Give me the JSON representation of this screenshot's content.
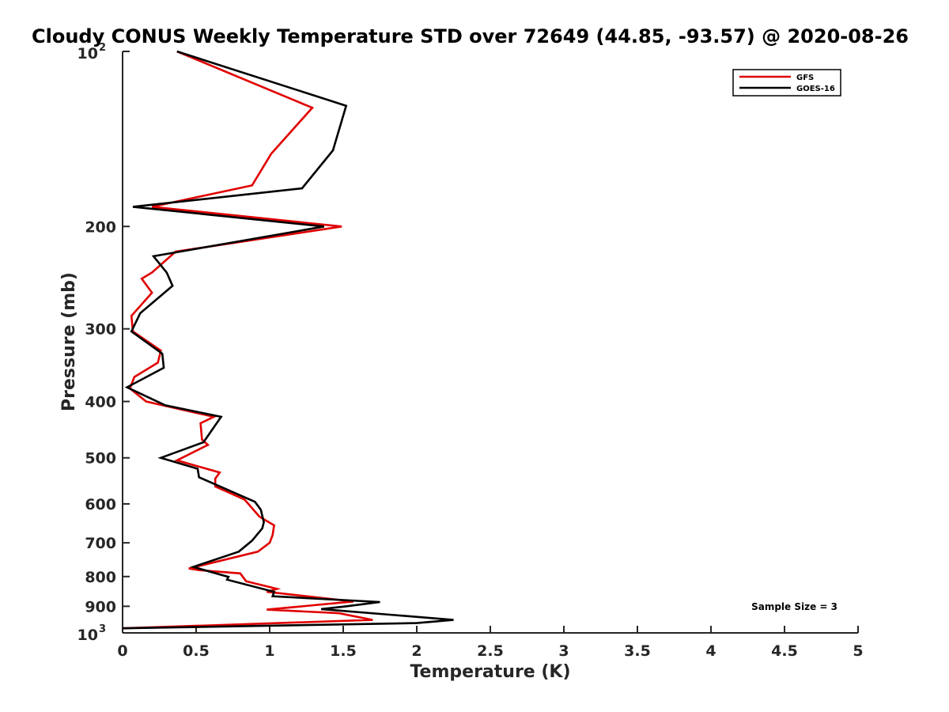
{
  "chart_data": {
    "type": "line",
    "title": "Cloudy CONUS Weekly Temperature STD over 72649 (44.85, -93.57) @ 2020-08-26",
    "xlabel": "Temperature (K)",
    "ylabel": "Pressure (mb)",
    "xlim": [
      0,
      5
    ],
    "ylim": [
      100,
      1000
    ],
    "y_scale": "log",
    "y_reversed": true,
    "x_ticks": [
      0,
      0.5,
      1,
      1.5,
      2,
      2.5,
      3,
      3.5,
      4,
      4.5,
      5
    ],
    "x_tick_labels": [
      "0",
      "0.5",
      "1",
      "1.5",
      "2",
      "2.5",
      "3",
      "3.5",
      "4",
      "4.5",
      "5"
    ],
    "y_ticks": [
      {
        "value": 100,
        "base": "10",
        "exp": "2"
      },
      {
        "value": 200,
        "label": "200"
      },
      {
        "value": 300,
        "label": "300"
      },
      {
        "value": 400,
        "label": "400"
      },
      {
        "value": 500,
        "label": "500"
      },
      {
        "value": 600,
        "label": "600"
      },
      {
        "value": 700,
        "label": "700"
      },
      {
        "value": 800,
        "label": "800"
      },
      {
        "value": 900,
        "label": "900"
      },
      {
        "value": 1000,
        "base": "10",
        "exp": "3"
      }
    ],
    "grid": false,
    "legend_position": "top-right",
    "annotation": "Sample Size = 3",
    "series": [
      {
        "name": "GFS",
        "color": "#e00000",
        "points": [
          [
            0.37,
            100
          ],
          [
            1.29,
            125
          ],
          [
            1.01,
            150
          ],
          [
            0.88,
            170
          ],
          [
            0.2,
            185
          ],
          [
            1.49,
            200
          ],
          [
            0.36,
            221
          ],
          [
            0.2,
            240
          ],
          [
            0.13,
            246
          ],
          [
            0.2,
            260
          ],
          [
            0.06,
            285
          ],
          [
            0.07,
            303
          ],
          [
            0.26,
            327
          ],
          [
            0.24,
            343
          ],
          [
            0.08,
            363
          ],
          [
            0.05,
            380
          ],
          [
            0.16,
            400
          ],
          [
            0.62,
            425
          ],
          [
            0.53,
            436
          ],
          [
            0.54,
            465
          ],
          [
            0.58,
            475
          ],
          [
            0.37,
            505
          ],
          [
            0.66,
            530
          ],
          [
            0.63,
            543
          ],
          [
            0.63,
            560
          ],
          [
            0.83,
            590
          ],
          [
            0.93,
            631
          ],
          [
            1.03,
            653
          ],
          [
            1.02,
            679
          ],
          [
            1.0,
            700
          ],
          [
            0.92,
            725
          ],
          [
            0.45,
            775
          ],
          [
            0.52,
            780
          ],
          [
            0.8,
            790
          ],
          [
            0.84,
            815
          ],
          [
            1.05,
            840
          ],
          [
            0.98,
            850
          ],
          [
            1.57,
            883
          ],
          [
            0.98,
            912
          ],
          [
            1.47,
            925
          ],
          [
            1.7,
            950
          ],
          [
            0.0,
            982
          ]
        ]
      },
      {
        "name": "GOES-16",
        "color": "#000000",
        "points": [
          [
            0.37,
            100
          ],
          [
            1.52,
            124
          ],
          [
            1.43,
            148
          ],
          [
            1.22,
            172
          ],
          [
            0.07,
            185
          ],
          [
            1.37,
            200
          ],
          [
            0.21,
            225
          ],
          [
            0.3,
            240
          ],
          [
            0.34,
            253
          ],
          [
            0.12,
            282
          ],
          [
            0.06,
            303
          ],
          [
            0.27,
            331
          ],
          [
            0.28,
            350
          ],
          [
            0.03,
            378
          ],
          [
            0.29,
            406
          ],
          [
            0.67,
            425
          ],
          [
            0.55,
            470
          ],
          [
            0.26,
            500
          ],
          [
            0.51,
            522
          ],
          [
            0.52,
            540
          ],
          [
            0.9,
            595
          ],
          [
            0.94,
            614
          ],
          [
            0.96,
            645
          ],
          [
            0.95,
            661
          ],
          [
            0.88,
            694
          ],
          [
            0.79,
            725
          ],
          [
            0.48,
            770
          ],
          [
            0.72,
            801
          ],
          [
            0.71,
            810
          ],
          [
            1.03,
            850
          ],
          [
            1.02,
            865
          ],
          [
            1.75,
            885
          ],
          [
            1.52,
            900
          ],
          [
            1.35,
            910
          ],
          [
            1.85,
            932
          ],
          [
            2.25,
            950
          ],
          [
            2.0,
            962
          ],
          [
            0.0,
            982
          ]
        ]
      }
    ]
  }
}
